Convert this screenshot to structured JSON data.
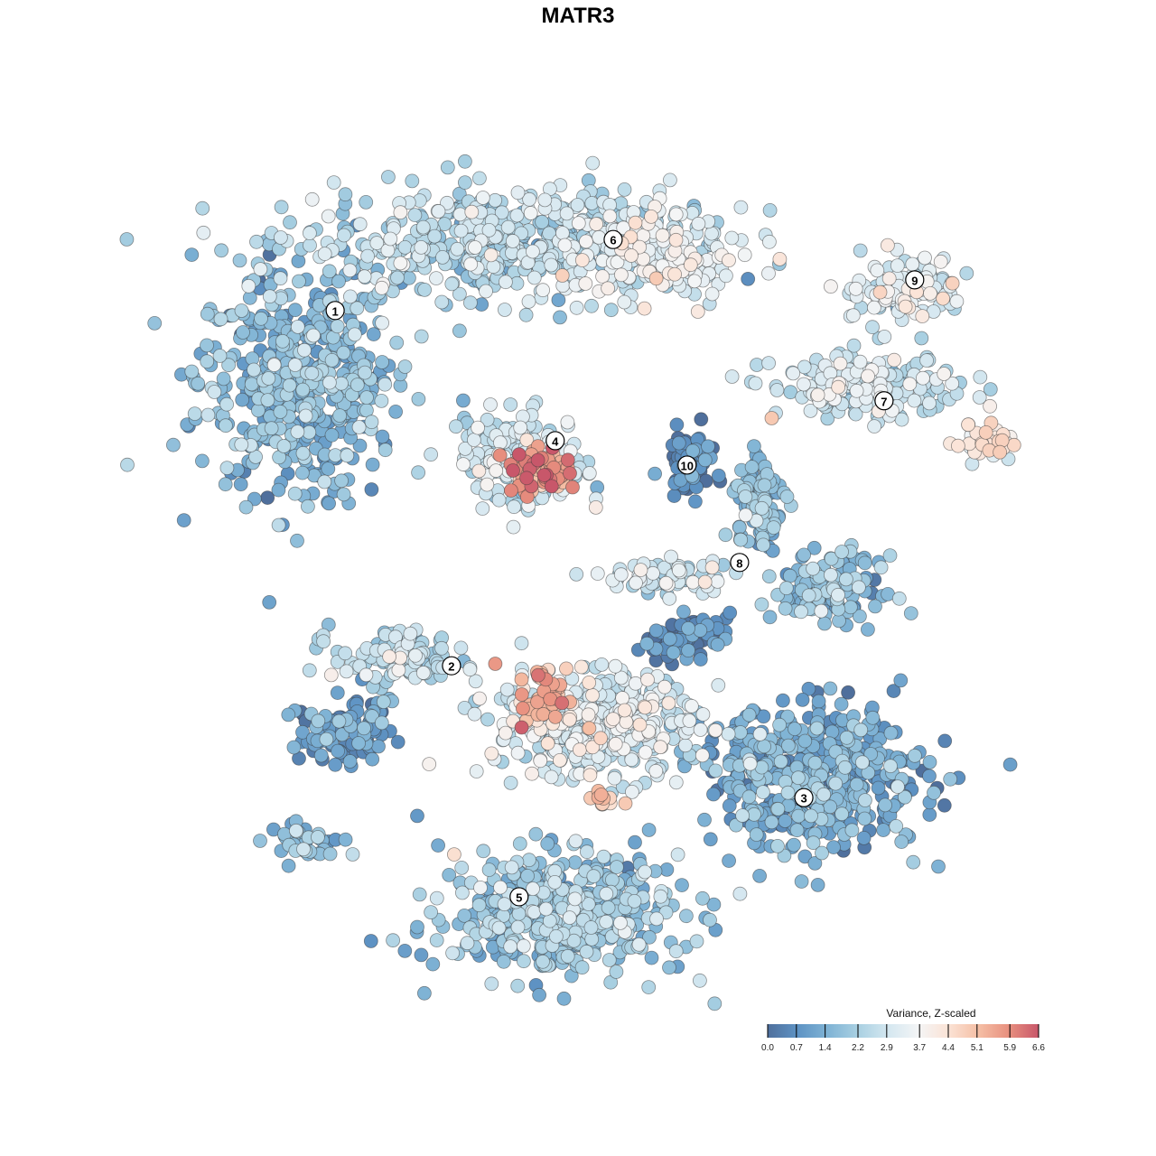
{
  "chart_data": {
    "type": "scatter",
    "title": "MATR3",
    "xlabel": "",
    "ylabel": "",
    "axes_visible": false,
    "grid": false,
    "color_legend": {
      "title": "Variance, Z-scaled",
      "placement": "bottom-right",
      "range": [
        0.0,
        6.6
      ],
      "ticks": [
        "0.0",
        "0.7",
        "1.4",
        "2.2",
        "2.9",
        "3.7",
        "4.4",
        "5.1",
        "5.9",
        "6.6"
      ],
      "colors": [
        "#4f6f9c",
        "#5e93c4",
        "#7fb3d5",
        "#a9d0e2",
        "#d4e7f0",
        "#f4f5f6",
        "#fbe3d6",
        "#f5bfa5",
        "#e8907f",
        "#c8576a"
      ]
    },
    "point_groups": [
      {
        "cluster": "1",
        "x": -7.2,
        "y": 4.73,
        "sx": 2.0,
        "sy": 2.2,
        "value": 1.6,
        "n": 500
      },
      {
        "cluster": "1",
        "x": -2.26,
        "y": 7.96,
        "sx": 4.0,
        "sy": 1.1,
        "value": 2.4,
        "n": 500
      },
      {
        "cluster": "6",
        "x": 1.18,
        "y": 7.74,
        "sx": 1.8,
        "sy": 0.9,
        "value": 3.2,
        "n": 200
      },
      {
        "cluster": "9",
        "x": 7.2,
        "y": 6.88,
        "sx": 1.2,
        "sy": 0.7,
        "value": 3.1,
        "n": 120
      },
      {
        "cluster": "7",
        "x": 6.34,
        "y": 4.52,
        "sx": 1.8,
        "sy": 0.6,
        "value": 2.8,
        "n": 180
      },
      {
        "cluster": "7",
        "x": 9.14,
        "y": 3.23,
        "sx": 0.6,
        "sy": 0.4,
        "value": 3.9,
        "n": 40
      },
      {
        "cluster": "4",
        "x": -1.83,
        "y": 2.8,
        "sx": 1.2,
        "sy": 0.9,
        "value": 2.8,
        "n": 200
      },
      {
        "cluster": "4",
        "x": -1.4,
        "y": 2.58,
        "sx": 0.7,
        "sy": 0.45,
        "value": 5.6,
        "n": 70
      },
      {
        "cluster": "10",
        "x": 2.15,
        "y": 2.8,
        "sx": 0.5,
        "sy": 0.6,
        "value": 0.5,
        "n": 60
      },
      {
        "cluster": "8",
        "x": 3.76,
        "y": 1.72,
        "sx": 0.5,
        "sy": 0.9,
        "value": 1.6,
        "n": 100
      },
      {
        "cluster": "8",
        "x": 5.48,
        "y": -0.22,
        "sx": 1.0,
        "sy": 0.6,
        "value": 1.6,
        "n": 150
      },
      {
        "cluster": "8",
        "x": 1.6,
        "y": 0.0,
        "sx": 1.2,
        "sy": 0.4,
        "value": 2.7,
        "n": 80
      },
      {
        "cluster": "2",
        "x": -4.84,
        "y": -1.94,
        "sx": 1.3,
        "sy": 0.6,
        "value": 2.4,
        "n": 120
      },
      {
        "cluster": "2",
        "x": -6.13,
        "y": -3.66,
        "sx": 0.9,
        "sy": 0.6,
        "value": 0.8,
        "n": 100
      },
      {
        "cluster": "2",
        "x": -7.0,
        "y": -6.24,
        "sx": 0.8,
        "sy": 0.4,
        "value": 1.8,
        "n": 40
      },
      {
        "cluster": "3",
        "x": 2.04,
        "y": -1.4,
        "sx": 0.9,
        "sy": 0.4,
        "value": 0.5,
        "n": 60
      },
      {
        "cluster": "5",
        "x": -0.1,
        "y": -3.44,
        "sx": 2.0,
        "sy": 1.1,
        "value": 3.0,
        "n": 400
      },
      {
        "cluster": "5",
        "x": -1.29,
        "y": -2.8,
        "sx": 0.6,
        "sy": 0.6,
        "value": 5.2,
        "n": 50
      },
      {
        "cluster": "5",
        "x": 0.1,
        "y": -5.27,
        "sx": 0.3,
        "sy": 0.2,
        "value": 5.0,
        "n": 12
      },
      {
        "cluster": "3",
        "x": 5.05,
        "y": -4.73,
        "sx": 2.2,
        "sy": 1.4,
        "value": 1.2,
        "n": 500
      },
      {
        "cluster": "5",
        "x": -0.97,
        "y": -7.96,
        "sx": 2.4,
        "sy": 1.2,
        "value": 1.9,
        "n": 500
      }
    ],
    "cluster_labels": [
      {
        "label": "1",
        "x": -6.32,
        "y": 6.37
      },
      {
        "label": "2",
        "x": -3.55,
        "y": -2.09
      },
      {
        "label": "3",
        "x": 4.84,
        "y": -5.23
      },
      {
        "label": "4",
        "x": -1.08,
        "y": 3.27
      },
      {
        "label": "5",
        "x": -1.94,
        "y": -7.59
      },
      {
        "label": "6",
        "x": 0.3,
        "y": 8.06
      },
      {
        "label": "7",
        "x": 6.75,
        "y": 4.22
      },
      {
        "label": "8",
        "x": 3.31,
        "y": 0.37
      },
      {
        "label": "9",
        "x": 7.48,
        "y": 7.1
      },
      {
        "label": "10",
        "x": 2.06,
        "y": 2.69
      }
    ]
  }
}
